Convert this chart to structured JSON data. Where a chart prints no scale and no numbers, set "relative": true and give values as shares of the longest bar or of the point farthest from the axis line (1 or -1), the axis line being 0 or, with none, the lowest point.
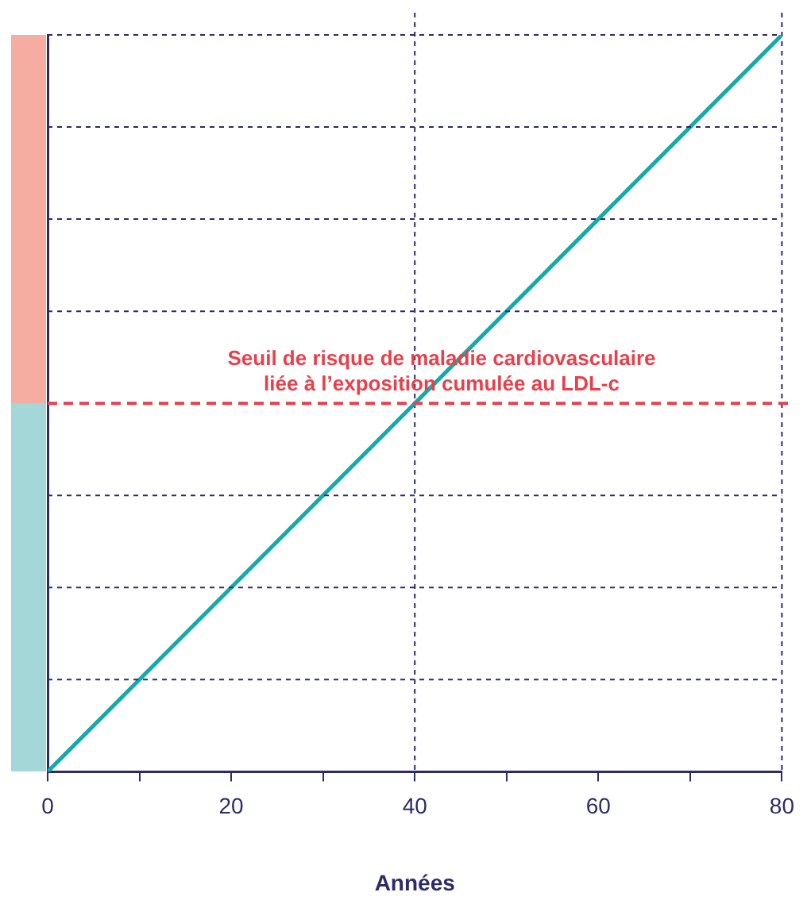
{
  "chart_data": {
    "type": "line",
    "xlabel": "Années",
    "x": [
      0,
      80
    ],
    "relative": true,
    "series": [
      {
        "color": "#15a9a9",
        "values": [
          0,
          1
        ]
      }
    ],
    "xlim": [
      0,
      80
    ],
    "xticks": [
      0,
      {
        "value": 10,
        "label": null
      },
      20,
      {
        "value": 30,
        "label": null
      },
      40,
      {
        "value": 50,
        "label": null
      },
      60,
      {
        "value": 70,
        "label": null
      },
      80
    ],
    "marker": "none",
    "line_style": "solid",
    "ref_lines": [
      {
        "axis": "y",
        "value": 0.125,
        "color": "#2b2b6b",
        "line_style": "dotted"
      },
      {
        "axis": "y",
        "value": 0.25,
        "color": "#2b2b6b",
        "line_style": "dotted"
      },
      {
        "axis": "y",
        "value": 0.375,
        "color": "#2b2b6b",
        "line_style": "dotted"
      },
      {
        "axis": "y",
        "value": 0.625,
        "color": "#2b2b6b",
        "line_style": "dotted"
      },
      {
        "axis": "y",
        "value": 0.75,
        "color": "#2b2b6b",
        "line_style": "dotted"
      },
      {
        "axis": "y",
        "value": 0.875,
        "color": "#2b2b6b",
        "line_style": "dotted"
      },
      {
        "axis": "y",
        "value": 1,
        "color": "#2b2b6b",
        "line_style": "dotted"
      },
      {
        "axis": "y",
        "value": 0.5,
        "label": "Seuil de risque de maladie cardiovasculaire\nliée à l’exposition cumulée au LDL-c",
        "color": "#ea3f4a",
        "line_style": "dashed"
      },
      {
        "axis": "x",
        "value": 40,
        "color": "#2b2b6b",
        "line_style": "dotted"
      },
      {
        "axis": "x",
        "value": 80,
        "color": "#2b2b6b",
        "line_style": "dotted"
      }
    ]
  }
}
